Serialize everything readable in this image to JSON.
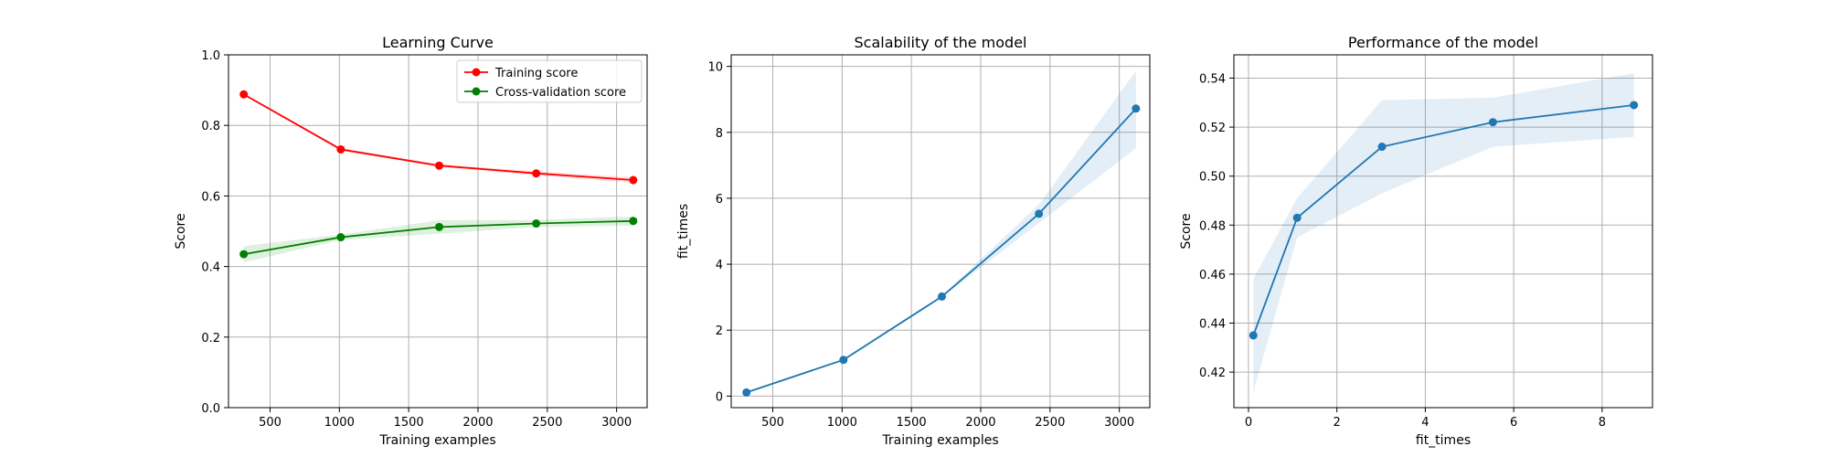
{
  "figure": {
    "charts": [
      {
        "id": "learning-curve",
        "title": "Learning Curve",
        "xlabel": "Training examples",
        "ylabel": "Score"
      },
      {
        "id": "scalability",
        "title": "Scalability of the model",
        "xlabel": "Training examples",
        "ylabel": "fit_times"
      },
      {
        "id": "performance",
        "title": "Performance of the model",
        "xlabel": "fit_times",
        "ylabel": "Score"
      }
    ]
  },
  "colors": {
    "training": "#ff0000",
    "cross_validation": "#008000",
    "model": "#1f77b4",
    "grid": "#b0b0b0",
    "axes": "#000000"
  },
  "chart_data": [
    {
      "type": "line",
      "title": "Learning Curve",
      "xlabel": "Training examples",
      "ylabel": "Score",
      "xlim": [
        200,
        3220
      ],
      "ylim": [
        0.0,
        1.0
      ],
      "xticks": [
        500,
        1000,
        1500,
        2000,
        2500,
        3000
      ],
      "yticks": [
        0.0,
        0.2,
        0.4,
        0.6,
        0.8,
        1.0
      ],
      "xtick_labels": [
        "500",
        "1000",
        "1500",
        "2000",
        "2500",
        "3000"
      ],
      "ytick_labels": [
        "0.0",
        "0.2",
        "0.4",
        "0.6",
        "0.8",
        "1.0"
      ],
      "grid": true,
      "legend": "top-right",
      "x": [
        310,
        1010,
        1720,
        2420,
        3120
      ],
      "series": [
        {
          "name": "Training score",
          "color": "#ff0000",
          "values": [
            0.888,
            0.732,
            0.686,
            0.664,
            0.645
          ],
          "band_low": [
            0.886,
            0.728,
            0.682,
            0.658,
            0.637
          ],
          "band_high": [
            0.89,
            0.736,
            0.69,
            0.67,
            0.653
          ]
        },
        {
          "name": "Cross-validation score",
          "color": "#008000",
          "values": [
            0.435,
            0.483,
            0.512,
            0.522,
            0.529
          ],
          "band_low": [
            0.412,
            0.475,
            0.493,
            0.512,
            0.516
          ],
          "band_high": [
            0.458,
            0.491,
            0.531,
            0.532,
            0.542
          ]
        }
      ]
    },
    {
      "type": "line",
      "title": "Scalability of the model",
      "xlabel": "Training examples",
      "ylabel": "fit_times",
      "xlim": [
        200,
        3220
      ],
      "ylim": [
        -0.35,
        10.35
      ],
      "xticks": [
        500,
        1000,
        1500,
        2000,
        2500,
        3000
      ],
      "yticks": [
        0,
        2,
        4,
        6,
        8,
        10
      ],
      "xtick_labels": [
        "500",
        "1000",
        "1500",
        "2000",
        "2500",
        "3000"
      ],
      "ytick_labels": [
        "0",
        "2",
        "4",
        "6",
        "8",
        "10"
      ],
      "grid": true,
      "x": [
        310,
        1010,
        1720,
        2420,
        3120
      ],
      "series": [
        {
          "color": "#1f77b4",
          "values": [
            0.11,
            1.1,
            3.02,
            5.53,
            8.72
          ],
          "band_low": [
            0.1,
            1.07,
            2.99,
            5.25,
            7.52
          ],
          "band_high": [
            0.12,
            1.13,
            3.05,
            5.81,
            9.86
          ]
        }
      ]
    },
    {
      "type": "line",
      "title": "Performance of the model",
      "xlabel": "fit_times",
      "ylabel": "Score",
      "xlim": [
        -0.33,
        9.14
      ],
      "ylim": [
        0.4055,
        0.5495
      ],
      "xticks": [
        0,
        2,
        4,
        6,
        8
      ],
      "yticks": [
        0.42,
        0.44,
        0.46,
        0.48,
        0.5,
        0.52,
        0.54
      ],
      "xtick_labels": [
        "0",
        "2",
        "4",
        "6",
        "8"
      ],
      "ytick_labels": [
        "0.42",
        "0.44",
        "0.46",
        "0.48",
        "0.50",
        "0.52",
        "0.54"
      ],
      "grid": true,
      "x": [
        0.11,
        1.1,
        3.02,
        5.53,
        8.72
      ],
      "series": [
        {
          "color": "#1f77b4",
          "values": [
            0.435,
            0.483,
            0.512,
            0.522,
            0.529
          ],
          "band_low": [
            0.412,
            0.475,
            0.493,
            0.512,
            0.516
          ],
          "band_high": [
            0.458,
            0.491,
            0.531,
            0.532,
            0.542
          ]
        }
      ]
    }
  ]
}
